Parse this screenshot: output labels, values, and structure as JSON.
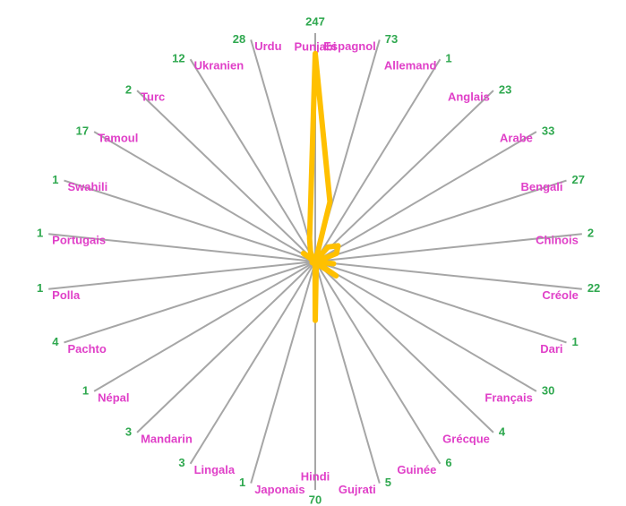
{
  "chart_data": {
    "type": "radar",
    "categories": [
      "Punjabi",
      "Espagnol",
      "Allemand",
      "Anglais",
      "Arabe",
      "Bengali",
      "Chinois",
      "Créole",
      "Dari",
      "Français",
      "Grécque",
      "Guinée",
      "Gujrati",
      "Hindi",
      "Japonais",
      "Lingala",
      "Mandarin",
      "Népal",
      "Pachto",
      "Polla",
      "Portugais",
      "Swahili",
      "Tamoul",
      "Turc",
      "Ukranien",
      "Urdu"
    ],
    "values": [
      247,
      73,
      1,
      23,
      33,
      27,
      2,
      22,
      1,
      30,
      4,
      6,
      5,
      70,
      1,
      3,
      3,
      1,
      4,
      1,
      1,
      1,
      17,
      2,
      12,
      28
    ],
    "color": "#ffc000",
    "ylim": [
      0,
      250
    ]
  }
}
